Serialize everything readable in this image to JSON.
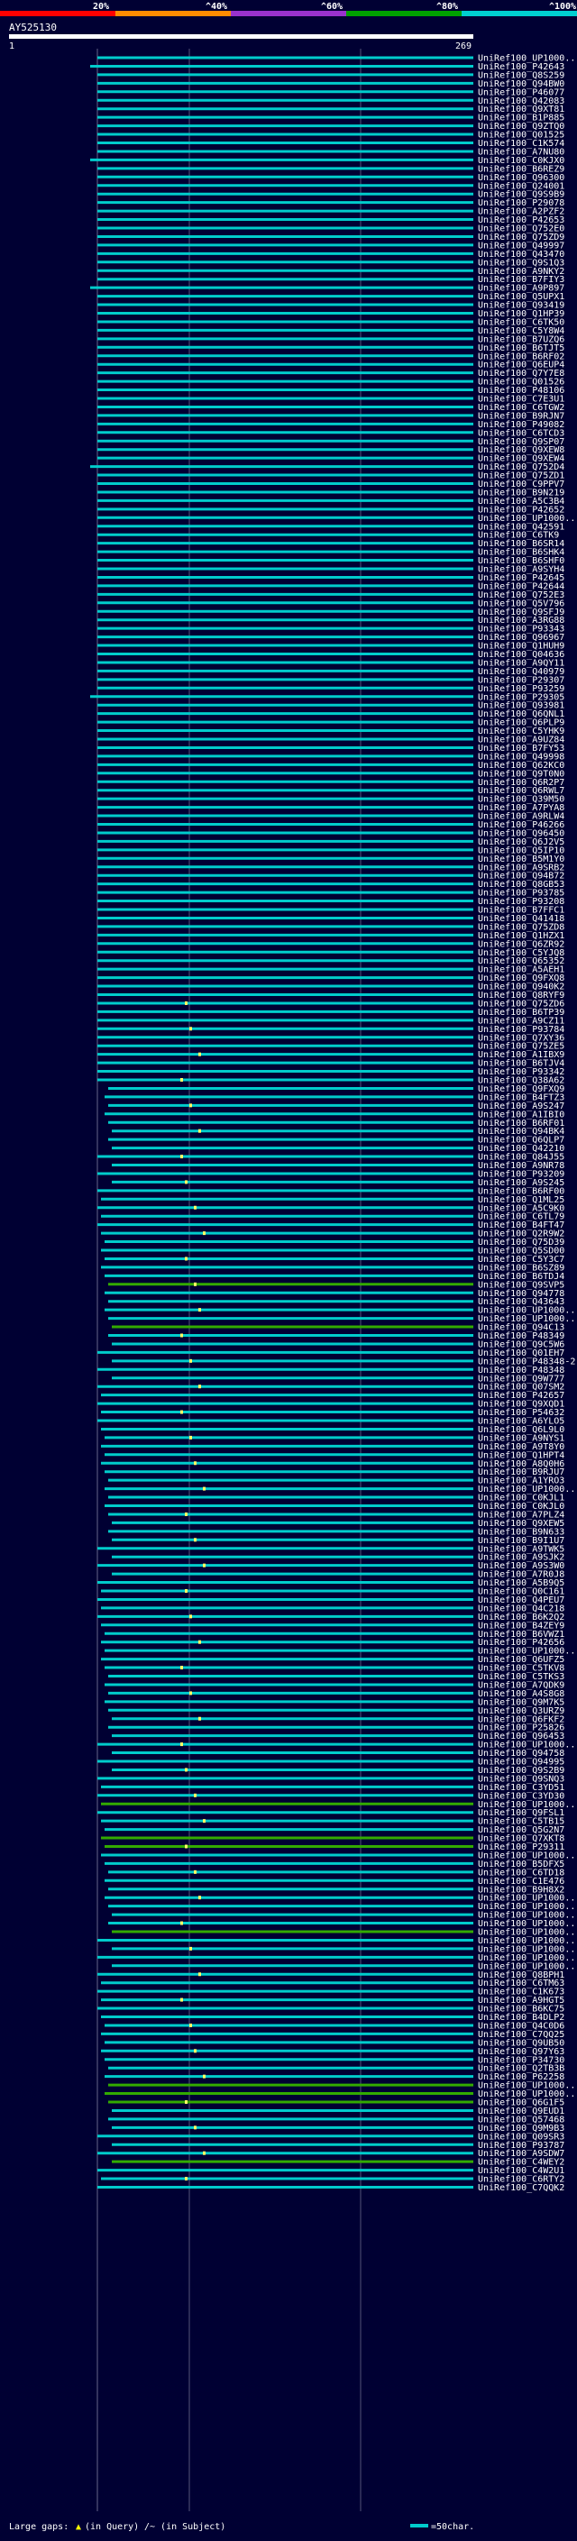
{
  "chart_data": {
    "type": "alignment-overview",
    "query": {
      "name": "AY525130",
      "start": "1",
      "end": "269"
    },
    "identity_scale": [
      {
        "label": "20%",
        "color": "#ff0000"
      },
      {
        "label": "^40%",
        "color": "#ff8c00"
      },
      {
        "label": "^60%",
        "color": "#9932cc"
      },
      {
        "label": "^80%",
        "color": "#00a000"
      },
      {
        "label": "^100%",
        "color": "#00d0d0"
      }
    ],
    "legend": {
      "large_gaps": "Large gaps:",
      "in_query": "(in Query)",
      "in_subject": "/~ (in Subject)",
      "scale_label": "=50char."
    },
    "colors": {
      "cyan": "#00cccc",
      "green": "#33aa00",
      "background": "#000033"
    },
    "hits": [
      "UniRef100_UP1000..",
      "UniRef100_P42643",
      "UniRef100_Q8S259",
      "UniRef100_Q94BW0",
      "UniRef100_P46077",
      "UniRef100_Q42083",
      "UniRef100_Q9XT81",
      "UniRef100_B1P885",
      "UniRef100_Q9ZTQ0",
      "UniRef100_Q01525",
      "UniRef100_C1K574",
      "UniRef100_A7NU80",
      "UniRef100_C0KJX0",
      "UniRef100_B6REZ9",
      "UniRef100_Q96300",
      "UniRef100_Q24001",
      "UniRef100_Q9S9B9",
      "UniRef100_P29078",
      "UniRef100_A2PZF2",
      "UniRef100_P42653",
      "UniRef100_Q752E0",
      "UniRef100_Q75ZD9",
      "UniRef100_Q49997",
      "UniRef100_Q43470",
      "UniRef100_Q9S1Q3",
      "UniRef100_A9NKY2",
      "UniRef100_B7FIY3",
      "UniRef100_A9P897",
      "UniRef100_Q5UPX1",
      "UniRef100_Q93419",
      "UniRef100_Q1HP39",
      "UniRef100_C6TK50",
      "UniRef100_C5Y8W4",
      "UniRef100_B7UZQ6",
      "UniRef100_B6TJT5",
      "UniRef100_B6RF02",
      "UniRef100_Q6EUP4",
      "UniRef100_Q7Y7E8",
      "UniRef100_Q01526",
      "UniRef100_P48106",
      "UniRef100_C7E3U1",
      "UniRef100_C6TGW2",
      "UniRef100_B9RJN7",
      "UniRef100_P49082",
      "UniRef100_C6TCD3",
      "UniRef100_Q9SP07",
      "UniRef100_Q9XEW8",
      "UniRef100_Q9XEW4",
      "UniRef100_Q752D4",
      "UniRef100_Q75ZD1",
      "UniRef100_C9PPV7",
      "UniRef100_B9N219",
      "UniRef100_A5C3B4",
      "UniRef100_P42652",
      "UniRef100_UP1000..",
      "UniRef100_Q42591",
      "UniRef100_C6TK9",
      "UniRef100_B6SR14",
      "UniRef100_B6SHK4",
      "UniRef100_B6SHF0",
      "UniRef100_A9SYH4",
      "UniRef100_P42645",
      "UniRef100_P42644",
      "UniRef100_Q752E3",
      "UniRef100_Q5V796",
      "UniRef100_Q9SFJ9",
      "UniRef100_A3RG88",
      "UniRef100_P93343",
      "UniRef100_Q96967",
      "UniRef100_Q1HUH9",
      "UniRef100_Q04636",
      "UniRef100_A9QY11",
      "UniRef100_Q40979",
      "UniRef100_P29307",
      "UniRef100_P93259",
      "UniRef100_P29305",
      "UniRef100_Q93981",
      "UniRef100_Q6QNL1",
      "UniRef100_Q6PLP9",
      "UniRef100_C5YHK9",
      "UniRef100_A9UZ84",
      "UniRef100_B7FY53",
      "UniRef100_Q49998",
      "UniRef100_Q62KC0",
      "UniRef100_Q9T0N0",
      "UniRef100_Q6R2P7",
      "UniRef100_Q6RWL7",
      "UniRef100_Q39M50",
      "UniRef100_A7PYA8",
      "UniRef100_A9RLW4",
      "UniRef100_P46266",
      "UniRef100_Q96450",
      "UniRef100_Q6J2V5",
      "UniRef100_Q5IP10",
      "UniRef100_B5M1Y0",
      "UniRef100_A9SRB2",
      "UniRef100_Q94B72",
      "UniRef100_Q8GB53",
      "UniRef100_P93785",
      "UniRef100_P93208",
      "UniRef100_B7FFC1",
      "UniRef100_Q41418",
      "UniRef100_Q75ZD8",
      "UniRef100_Q1HZX1",
      "UniRef100_Q6ZR92",
      "UniRef100_C5YJQ8",
      "UniRef100_Q65352",
      "UniRef100_A5AEH1",
      "UniRef100_Q9FXQ8",
      "UniRef100_Q940K2",
      "UniRef100_Q8RYF9",
      "UniRef100_Q75ZD6",
      "UniRef100_B6TP39",
      "UniRef100_A9CZ11",
      "UniRef100_P93784",
      "UniRef100_Q7XY36",
      "UniRef100_Q75ZE5",
      "UniRef100_A1IBX9",
      "UniRef100_B6TJV4",
      "UniRef100_P93342",
      "UniRef100_Q38A62",
      "UniRef100_Q9FXQ9",
      "UniRef100_B4FTZ3",
      "UniRef100_A9S247",
      "UniRef100_A1IBI0",
      "UniRef100_B6RF01",
      "UniRef100_Q94BK4",
      "UniRef100_Q6QLP7",
      "UniRef100_Q42210",
      "UniRef100_Q84J55",
      "UniRef100_A9NR78",
      "UniRef100_P93209",
      "UniRef100_A9S245",
      "UniRef100_B6RF00",
      "UniRef100_Q1ML25",
      "UniRef100_A5C9K0",
      "UniRef100_C6TL79",
      "UniRef100_B4FT47",
      "UniRef100_Q2R9W2",
      "UniRef100_Q75D39",
      "UniRef100_Q5SD00",
      "UniRef100_C5Y3C7",
      "UniRef100_B6SZ89",
      "UniRef100_B6TDJ4",
      "UniRef100_Q9SVP5",
      "UniRef100_Q94778",
      "UniRef100_Q43643",
      "UniRef100_UP1000..",
      "UniRef100_UP1000..",
      "UniRef100_Q94C13",
      "UniRef100_P48349",
      "UniRef100_Q9C5W6",
      "UniRef100_Q01EH7",
      "UniRef100_P48348-2",
      "UniRef100_P48348",
      "UniRef100_Q9W777",
      "UniRef100_Q07SM2",
      "UniRef100_P42657",
      "UniRef100_Q9XQD1",
      "UniRef100_P54632",
      "UniRef100_A6YLO5",
      "UniRef100_Q6L9L0",
      "UniRef100_A9NYS1",
      "UniRef100_A9T8Y0",
      "UniRef100_Q1HPT4",
      "UniRef100_A8Q0H6",
      "UniRef100_B9RJU7",
      "UniRef100_A1YRO3",
      "UniRef100_UP1000..",
      "UniRef100_C0KJL1",
      "UniRef100_C0KJL0",
      "UniRef100_A7PLZ4",
      "UniRef100_Q9XEW5",
      "UniRef100_B9N633",
      "UniRef100_B9I1U7",
      "UniRef100_A9TWK5",
      "UniRef100_A9SJK2",
      "UniRef100_A9S3W0",
      "UniRef100_A7R0J8",
      "UniRef100_A5B9Q5",
      "UniRef100_Q0C161",
      "UniRef100_Q4PEU7",
      "UniRef100_Q4C218",
      "UniRef100_B6K2Q2",
      "UniRef100_B4ZEY9",
      "UniRef100_B6VWZ1",
      "UniRef100_P42656",
      "UniRef100_UP1000..",
      "UniRef100_Q6UFZ5",
      "UniRef100_C5TKV8",
      "UniRef100_C5TKS3",
      "UniRef100_A7QDK9",
      "UniRef100_A4S8G8",
      "UniRef100_Q9M7K5",
      "UniRef100_Q3URZ9",
      "UniRef100_Q6FKF2",
      "UniRef100_P25826",
      "UniRef100_Q96453",
      "UniRef100_UP1000..",
      "UniRef100_Q94758",
      "UniRef100_Q94995",
      "UniRef100_Q9S2B9",
      "UniRef100_Q9SNQ3",
      "UniRef100_C3YD51",
      "UniRef100_C3YD30",
      "UniRef100_UP1000..",
      "UniRef100_Q9FSL1",
      "UniRef100_C5TB15",
      "UniRef100_Q5G2N7",
      "UniRef100_Q7XKT8",
      "UniRef100_P29311",
      "UniRef100_UP1000..",
      "UniRef100_B5DFX5",
      "UniRef100_C6TD18",
      "UniRef100_C1E476",
      "UniRef100_B9H8X2",
      "UniRef100_UP1000..",
      "UniRef100_UP1000..",
      "UniRef100_UP1000..",
      "UniRef100_UP1000..",
      "UniRef100_UP1000..",
      "UniRef100_UP1000..",
      "UniRef100_UP1000..",
      "UniRef100_UP1000..",
      "UniRef100_UP1000..",
      "UniRef100_Q8BPH1",
      "UniRef100_C6TM63",
      "UniRef100_C1K673",
      "UniRef100_A9HGT5",
      "UniRef100_B6KC75",
      "UniRef100_B4DLP2",
      "UniRef100_Q4C0D6",
      "UniRef100_C7QQ25",
      "UniRef100_Q9UB50",
      "UniRef100_Q97Y63",
      "UniRef100_P34730",
      "UniRef100_Q2TB3B",
      "UniRef100_P62258",
      "UniRef100_UP1000..",
      "UniRef100_UP1000..",
      "UniRef100_Q6G1F5",
      "UniRef100_Q9EUD1",
      "UniRef100_Q57468",
      "UniRef100_Q9M9B3",
      "UniRef100_Q09SR3",
      "UniRef100_P93787",
      "UniRef100_A9SDW7",
      "UniRef100_C4WEY2",
      "UniRef100_C4W2U1",
      "UniRef100_C6RTY2",
      "UniRef100_C7QQK2"
    ]
  }
}
